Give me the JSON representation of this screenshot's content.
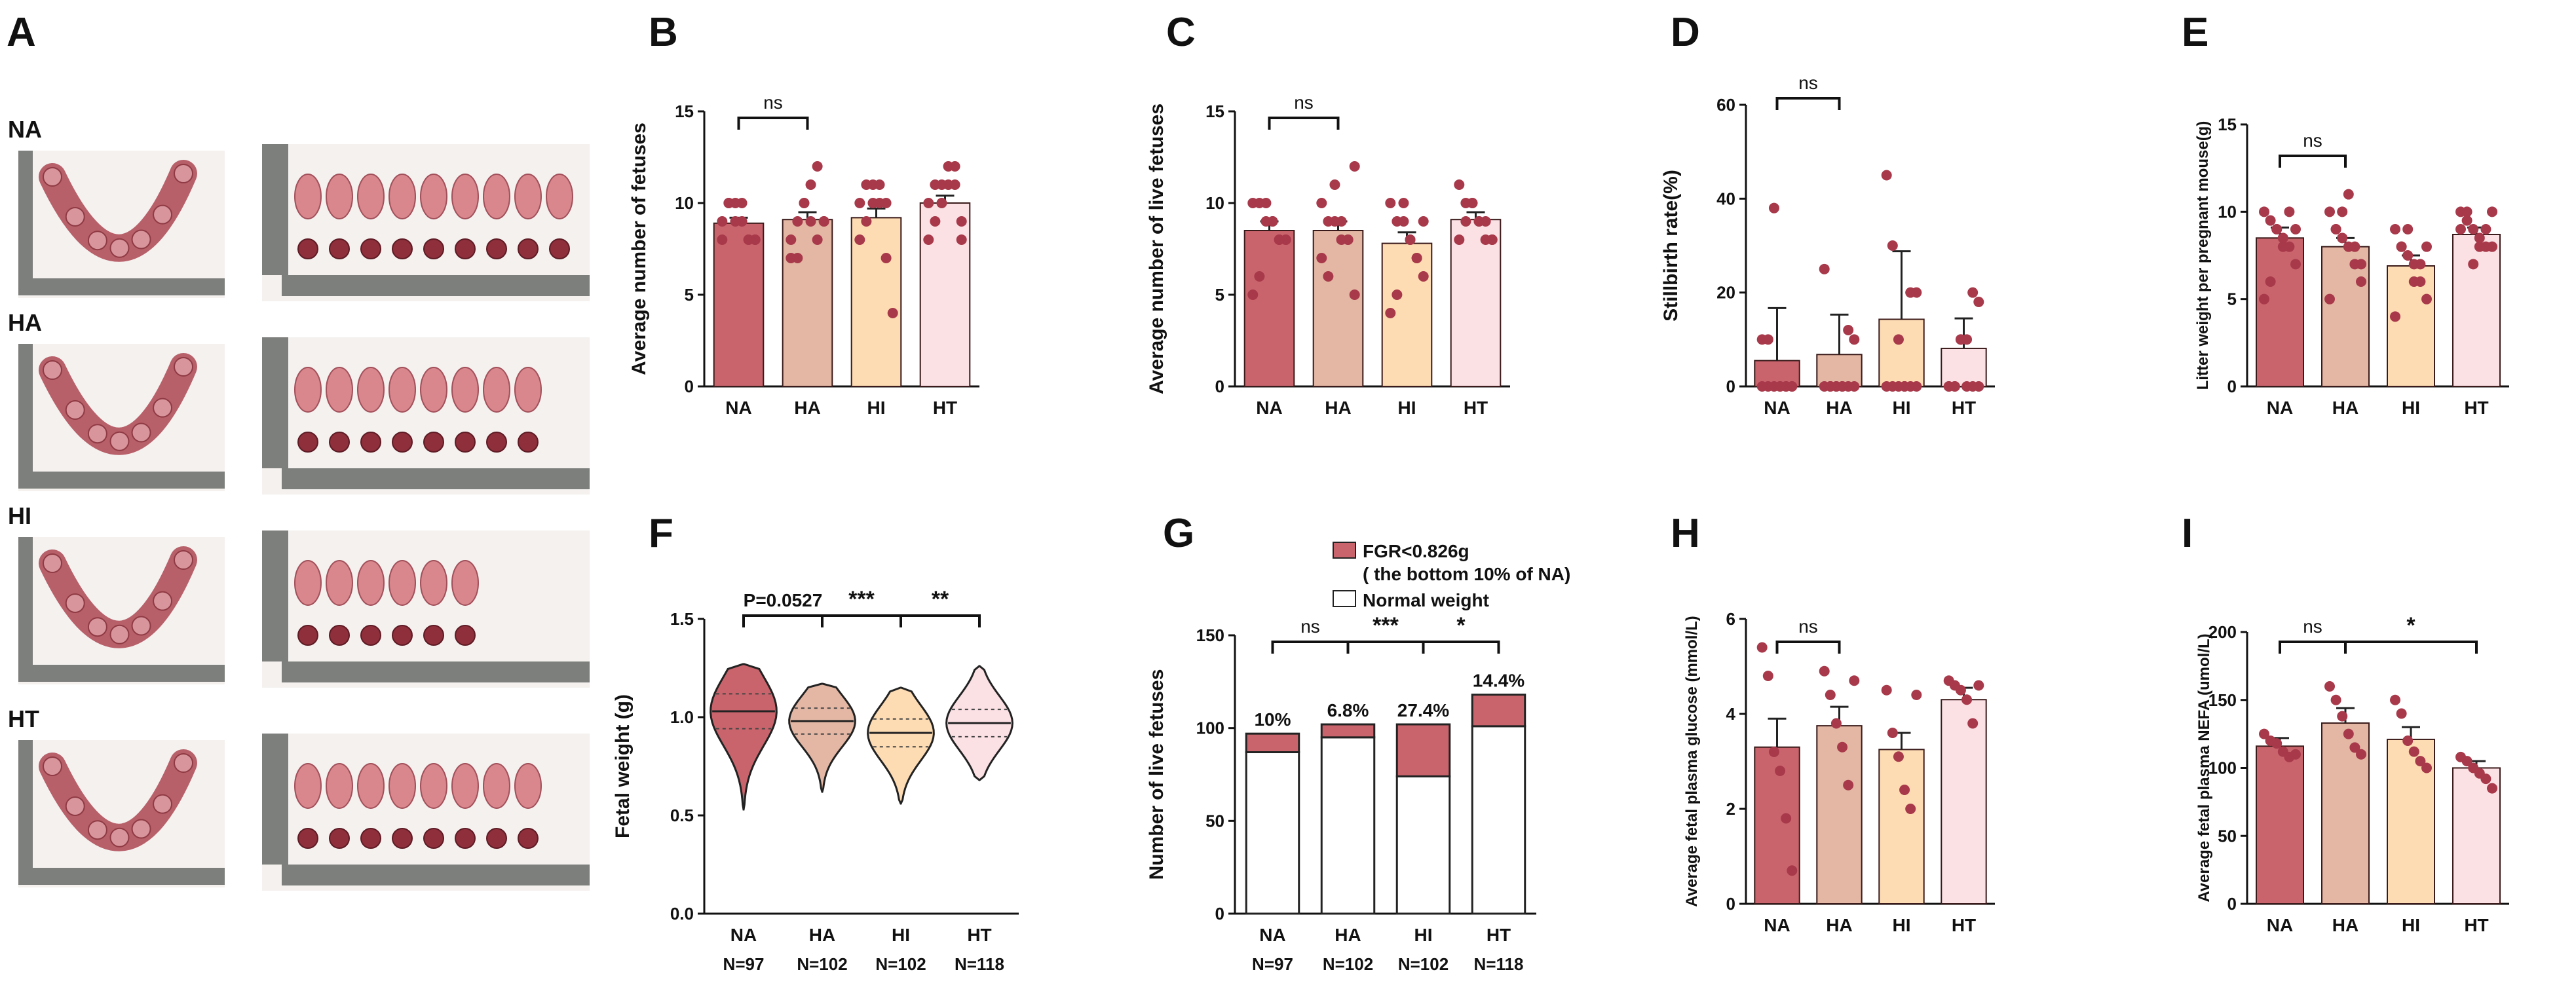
{
  "colors": {
    "NA": "#c9646c",
    "HA": "#e3b7a4",
    "HI": "#fddbb3",
    "HT": "#fbe0e4",
    "dot": "#a8394a",
    "ruler": "#7d7f7c",
    "tissue": "#b8606a",
    "bg_photo": "#f4f1ef"
  },
  "panelA": {
    "label": "A",
    "rows": [
      "NA",
      "HA",
      "HI",
      "HT"
    ],
    "fetus_counts": [
      9,
      8,
      6,
      8
    ],
    "placenta_counts": [
      9,
      8,
      6,
      8
    ]
  },
  "chart_data": [
    {
      "panel": "B",
      "type": "bar",
      "categories": [
        "NA",
        "HA",
        "HI",
        "HT"
      ],
      "values": [
        8.9,
        9.1,
        9.2,
        10.0
      ],
      "errors": [
        0.3,
        0.4,
        0.5,
        0.4
      ],
      "points": [
        [
          9,
          10,
          10,
          10,
          8,
          8,
          8,
          10,
          9,
          9,
          8,
          8
        ],
        [
          8,
          9,
          10,
          11,
          12,
          9,
          7,
          7,
          10,
          9,
          8,
          9
        ],
        [
          10,
          11,
          11,
          10,
          7,
          4,
          8,
          9,
          10,
          11,
          10
        ],
        [
          10,
          11,
          11,
          12,
          12,
          9,
          8,
          9,
          10,
          11,
          11,
          8
        ]
      ],
      "ylabel": "Average number of fetuses",
      "ylim": [
        0,
        15
      ],
      "yticks": [
        "0",
        "5",
        "10",
        "15"
      ],
      "sig": [
        {
          "from": 0,
          "to": 1,
          "text": "ns"
        }
      ]
    },
    {
      "panel": "C",
      "type": "bar",
      "categories": [
        "NA",
        "HA",
        "HI",
        "HT"
      ],
      "values": [
        8.5,
        8.5,
        7.8,
        9.1
      ],
      "errors": [
        0.5,
        0.5,
        0.6,
        0.4
      ],
      "points": [
        [
          10,
          10,
          9,
          9,
          8,
          8,
          5,
          6,
          10,
          9,
          8,
          8
        ],
        [
          10,
          9,
          9,
          8,
          8,
          12,
          7,
          6,
          11,
          9,
          8,
          5
        ],
        [
          10,
          9,
          9,
          8,
          7,
          6,
          4,
          5,
          10,
          8,
          7,
          9
        ],
        [
          11,
          10,
          10,
          9,
          9,
          8,
          8,
          9,
          10,
          9,
          8,
          8
        ]
      ],
      "ylabel": "Average number of live fetuses",
      "ylim": [
        0,
        15
      ],
      "yticks": [
        "0",
        "5",
        "10",
        "15"
      ],
      "sig": [
        {
          "from": 0,
          "to": 1,
          "text": "ns"
        }
      ]
    },
    {
      "panel": "D",
      "type": "bar",
      "categories": [
        "NA",
        "HA",
        "HI",
        "HT"
      ],
      "values": [
        5.5,
        6.8,
        14.3,
        8.1
      ],
      "errors": [
        11.2,
        8.5,
        14.5,
        6.4
      ],
      "points": [
        [
          0,
          0,
          0,
          0,
          0,
          0,
          10,
          10,
          38,
          0,
          0,
          0
        ],
        [
          0,
          0,
          0,
          0,
          12,
          10,
          25,
          0,
          0,
          0,
          0,
          0
        ],
        [
          0,
          0,
          0,
          0,
          20,
          20,
          45,
          30,
          10,
          0,
          0,
          0
        ],
        [
          0,
          0,
          10,
          10,
          20,
          18,
          0,
          0,
          10,
          0,
          0,
          0
        ]
      ],
      "ylabel": "Stillbirth rate(%)",
      "ylim": [
        0,
        60
      ],
      "yticks": [
        "0",
        "20",
        "40",
        "60"
      ],
      "sig": [
        {
          "from": 0,
          "to": 1,
          "text": "ns"
        }
      ]
    },
    {
      "panel": "E",
      "type": "bar",
      "categories": [
        "NA",
        "HA",
        "HI",
        "HT"
      ],
      "values": [
        8.5,
        8.0,
        6.9,
        8.7
      ],
      "errors": [
        0.6,
        0.5,
        0.6,
        0.4
      ],
      "points": [
        [
          10,
          9.5,
          9,
          8.5,
          8,
          7,
          5,
          6,
          9,
          8,
          10,
          9
        ],
        [
          10,
          9,
          8.5,
          8,
          7,
          6,
          5,
          9,
          10,
          11,
          8,
          7
        ],
        [
          9,
          8,
          7.5,
          7,
          6,
          5,
          4,
          8,
          9,
          6,
          7,
          8
        ],
        [
          10,
          9.5,
          9,
          8.5,
          8,
          8,
          9,
          10,
          7,
          8,
          9,
          10
        ]
      ],
      "ylabel": "Litter weight per pregnant mouse(g)",
      "ylim": [
        0,
        15
      ],
      "yticks": [
        "0",
        "5",
        "10",
        "15"
      ],
      "sig": [
        {
          "from": 0,
          "to": 1,
          "text": "ns"
        }
      ]
    },
    {
      "panel": "F",
      "type": "violin",
      "categories": [
        "NA",
        "HA",
        "HI",
        "HT"
      ],
      "medians": [
        1.03,
        0.98,
        0.92,
        0.97
      ],
      "ranges": [
        [
          0.53,
          1.27
        ],
        [
          0.62,
          1.17
        ],
        [
          0.56,
          1.15
        ],
        [
          0.68,
          1.26
        ]
      ],
      "counts": [
        "N=97",
        "N=102",
        "N=102",
        "N=118"
      ],
      "ylabel": "Fetal weight (g)",
      "ylim": [
        0,
        1.5
      ],
      "yticks": [
        "0.0",
        "0.5",
        "1.0",
        "1.5"
      ],
      "sig": [
        {
          "from": 0,
          "to": 1,
          "text": "P=0.0527"
        },
        {
          "from": 1,
          "to": 2,
          "text": "***"
        },
        {
          "from": 2,
          "to": 3,
          "text": "**"
        }
      ]
    },
    {
      "panel": "G",
      "type": "bar",
      "stacked": true,
      "categories": [
        "NA",
        "HA",
        "HI",
        "HT"
      ],
      "series": [
        {
          "name": "Normal weight",
          "values": [
            87,
            95,
            74,
            101
          ]
        },
        {
          "name": "FGR<0.826g ( the bottom 10% of NA)",
          "values": [
            10,
            7,
            28,
            17
          ]
        }
      ],
      "legend_lines": [
        "FGR<0.826g",
        "( the bottom 10% of NA)",
        "Normal weight"
      ],
      "percent_labels": [
        "10%",
        "6.8%",
        "27.4%",
        "14.4%"
      ],
      "counts": [
        "N=97",
        "N=102",
        "N=102",
        "N=118"
      ],
      "ylabel": "Number of live fetuses",
      "ylim": [
        0,
        150
      ],
      "yticks": [
        "0",
        "50",
        "100",
        "150"
      ],
      "sig": [
        {
          "from": 0,
          "to": 1,
          "text": "ns"
        },
        {
          "from": 1,
          "to": 2,
          "text": "***"
        },
        {
          "from": 2,
          "to": 3,
          "text": "*"
        }
      ]
    },
    {
      "panel": "H",
      "type": "bar",
      "categories": [
        "NA",
        "HA",
        "HI",
        "HT"
      ],
      "values": [
        3.3,
        3.75,
        3.25,
        4.3
      ],
      "errors": [
        0.6,
        0.4,
        0.35,
        0.25
      ],
      "points": [
        [
          5.4,
          4.8,
          3.2,
          2.8,
          1.8,
          0.7
        ],
        [
          4.9,
          4.4,
          3.8,
          3.3,
          2.5,
          4.7
        ],
        [
          4.5,
          3.6,
          3.1,
          2.4,
          2.0,
          4.4
        ],
        [
          4.7,
          4.6,
          4.5,
          4.3,
          3.8,
          4.6
        ]
      ],
      "ylabel": "Average fetal plasma glucose (mmol/L)",
      "ylim": [
        0,
        6
      ],
      "yticks": [
        "0",
        "2",
        "4",
        "6"
      ],
      "sig": [
        {
          "from": 0,
          "to": 1,
          "text": "ns"
        }
      ]
    },
    {
      "panel": "I",
      "type": "bar",
      "categories": [
        "NA",
        "HA",
        "HI",
        "HT"
      ],
      "values": [
        116,
        133,
        121,
        100
      ],
      "errors": [
        6,
        11,
        9,
        5
      ],
      "points": [
        [
          125,
          120,
          118,
          112,
          108,
          110
        ],
        [
          160,
          150,
          138,
          125,
          115,
          110
        ],
        [
          150,
          140,
          120,
          112,
          105,
          100
        ],
        [
          108,
          105,
          100,
          96,
          92,
          85
        ]
      ],
      "ylabel": "Average fetal plasma NEFA (umol/L)",
      "ylim": [
        0,
        200
      ],
      "yticks": [
        "0",
        "50",
        "100",
        "150",
        "200"
      ],
      "sig": [
        {
          "from": 0,
          "to": 1,
          "text": "ns"
        },
        {
          "from": 1,
          "to": 3,
          "text": "*"
        }
      ]
    }
  ]
}
